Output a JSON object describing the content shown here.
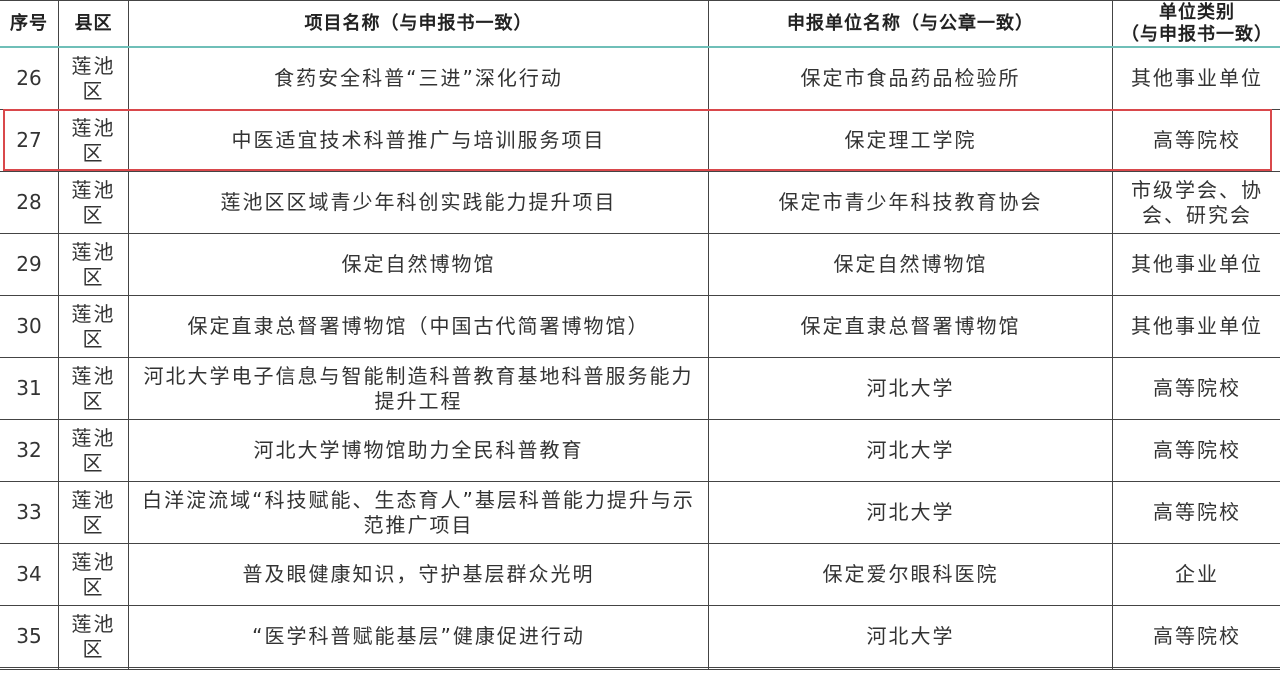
{
  "headers": [
    "序号",
    "县区",
    "项目名称（与申报书一致）",
    "申报单位名称（与公章一致）",
    "单位类别（与申报书一致）"
  ],
  "header_cat_line1": "单位类别",
  "header_cat_line2": "（与申报书一致）",
  "highlight_color": "#d9484b",
  "rows": [
    {
      "no": "26",
      "district": "莲池区",
      "project": "食药安全科普“三进”深化行动",
      "unit": "保定市食品药品检验所",
      "category": "其他事业单位"
    },
    {
      "no": "27",
      "district": "莲池区",
      "project": "中医适宜技术科普推广与培训服务项目",
      "unit": "保定理工学院",
      "category": "高等院校",
      "highlighted": true
    },
    {
      "no": "28",
      "district": "莲池区",
      "project": "莲池区区域青少年科创实践能力提升项目",
      "unit": "保定市青少年科技教育协会",
      "category": "市级学会、协会、研究会"
    },
    {
      "no": "29",
      "district": "莲池区",
      "project": "保定自然博物馆",
      "unit": "保定自然博物馆",
      "category": "其他事业单位"
    },
    {
      "no": "30",
      "district": "莲池区",
      "project": "保定直隶总督署博物馆（中国古代简署博物馆）",
      "unit": "保定直隶总督署博物馆",
      "category": "其他事业单位"
    },
    {
      "no": "31",
      "district": "莲池区",
      "project": "河北大学电子信息与智能制造科普教育基地科普服务能力提升工程",
      "unit": "河北大学",
      "category": "高等院校"
    },
    {
      "no": "32",
      "district": "莲池区",
      "project": "河北大学博物馆助力全民科普教育",
      "unit": "河北大学",
      "category": "高等院校"
    },
    {
      "no": "33",
      "district": "莲池区",
      "project": "白洋淀流域“科技赋能、生态育人”基层科普能力提升与示范推广项目",
      "unit": "河北大学",
      "category": "高等院校"
    },
    {
      "no": "34",
      "district": "莲池区",
      "project": "普及眼健康知识，守护基层群众光明",
      "unit": "保定爱尔眼科医院",
      "category": "企业"
    },
    {
      "no": "35",
      "district": "莲池区",
      "project": "“医学科普赋能基层”健康促进行动",
      "unit": "河北大学",
      "category": "高等院校"
    }
  ]
}
